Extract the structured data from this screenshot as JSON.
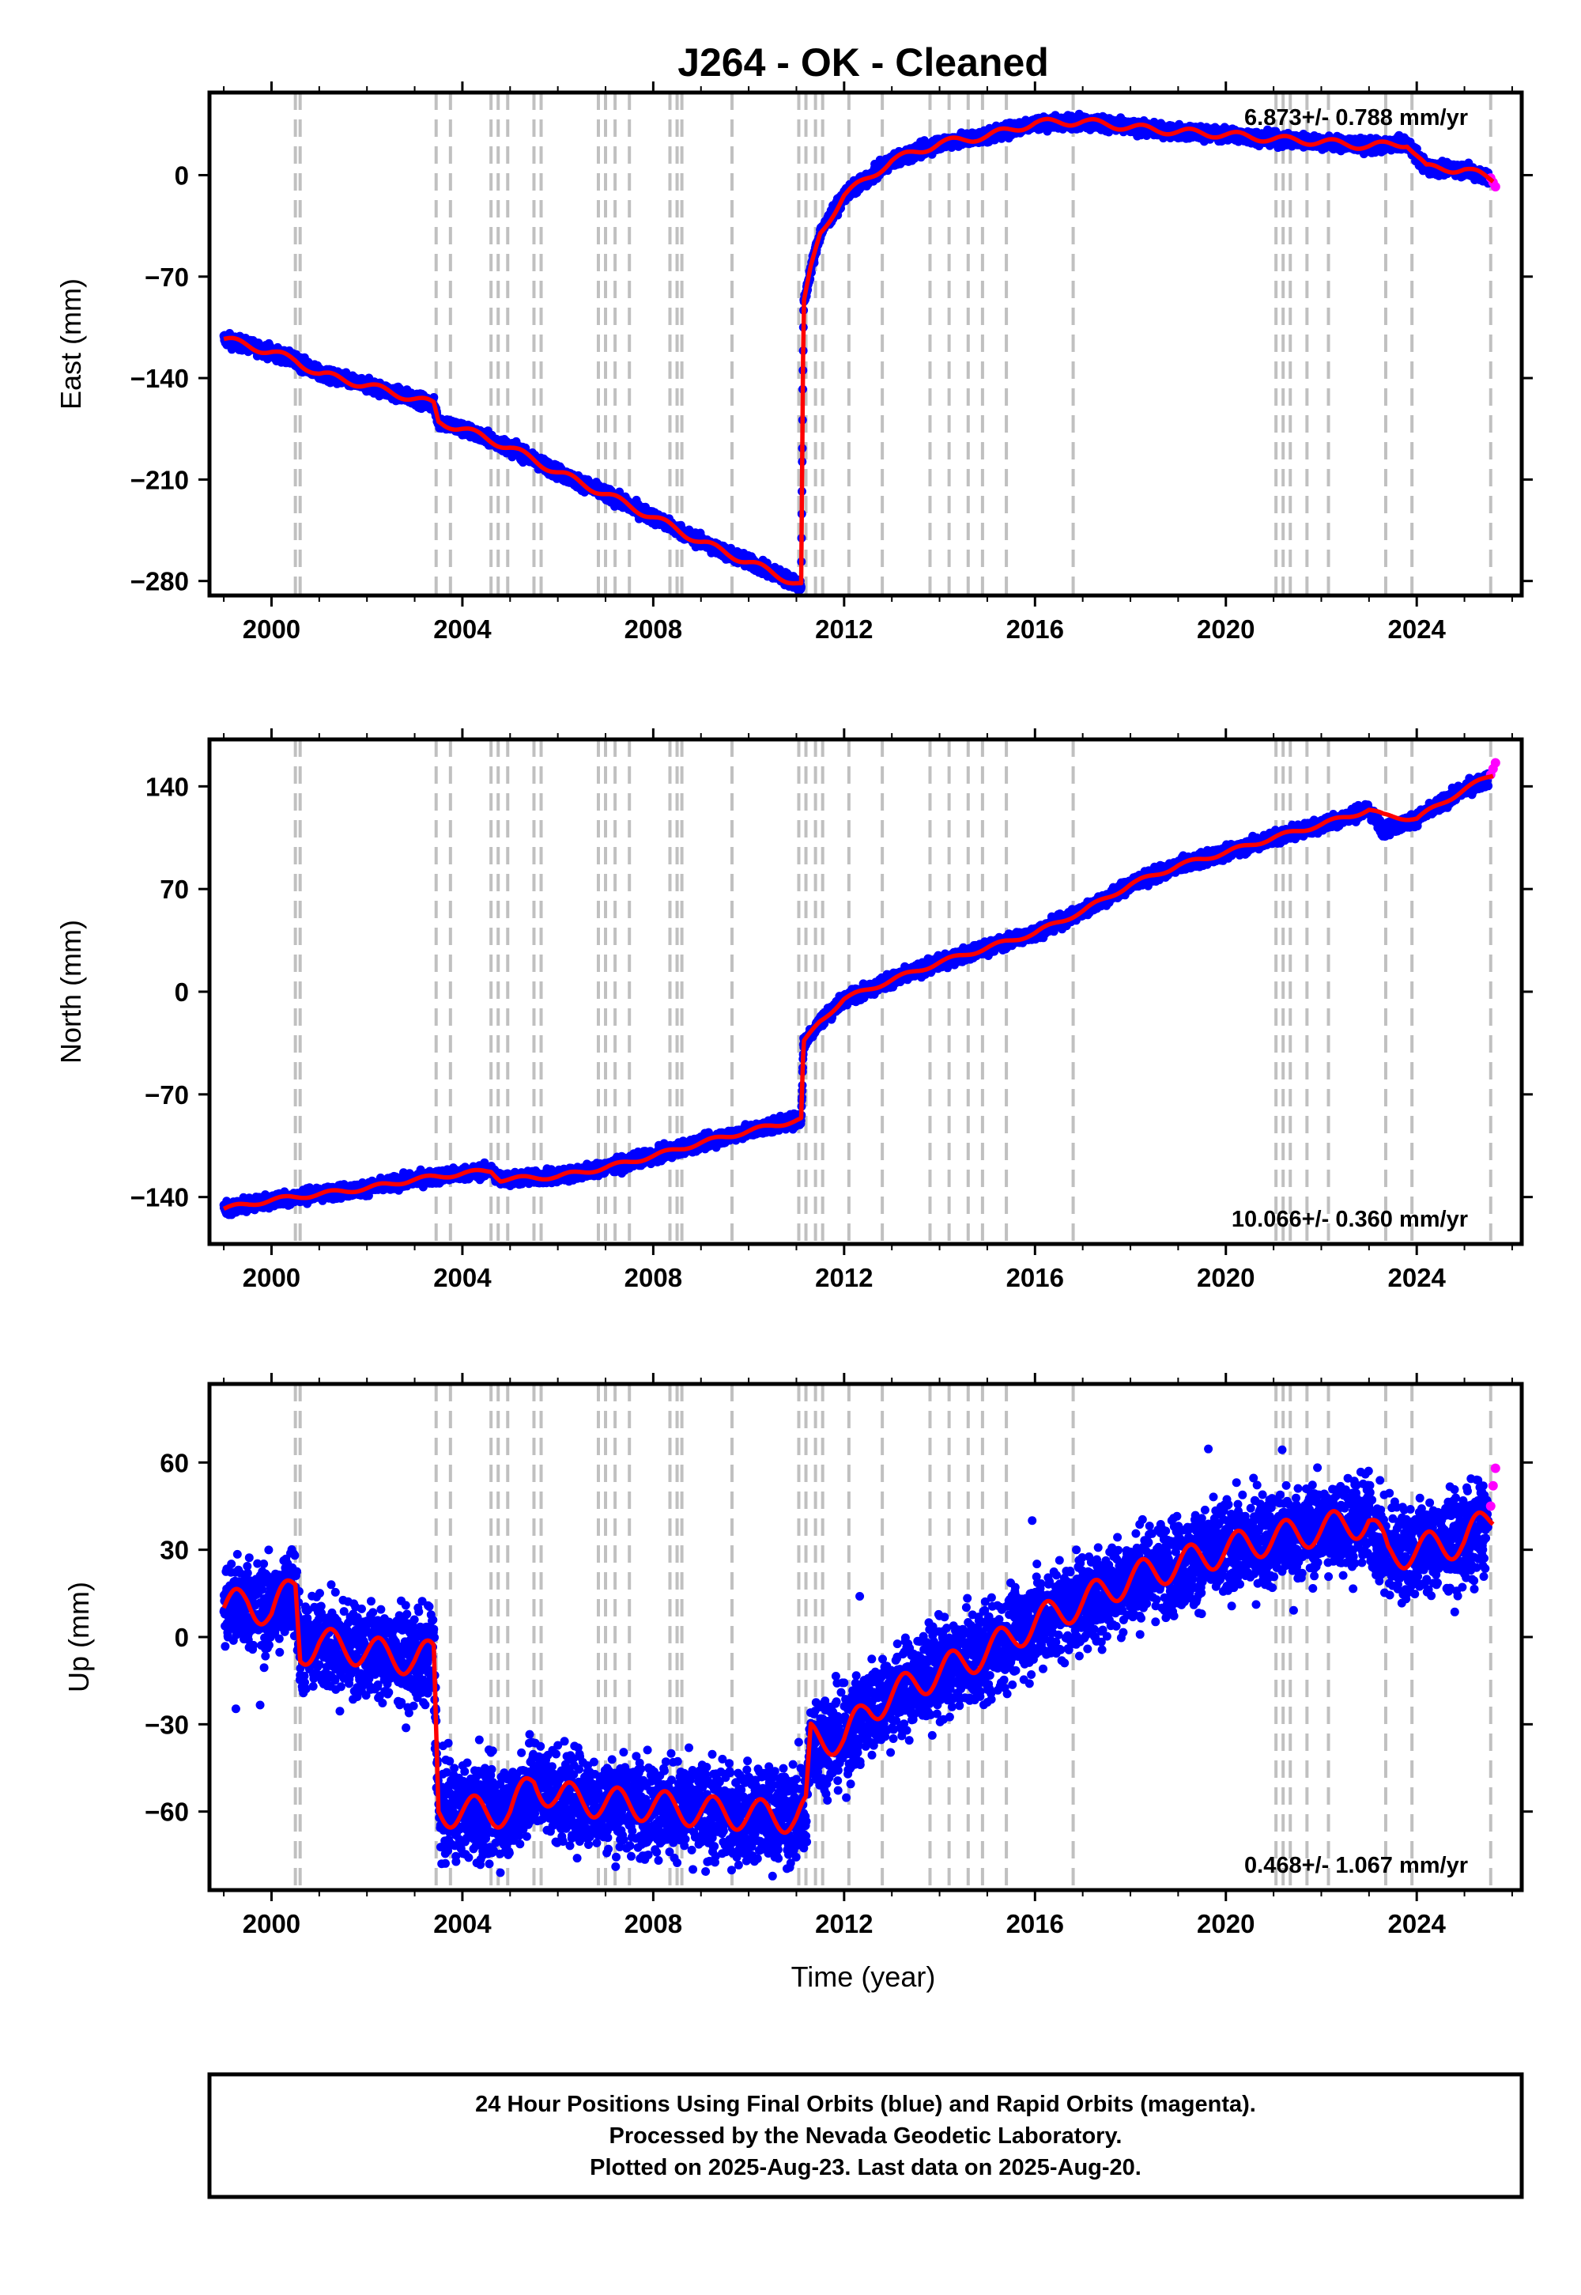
{
  "chart_data": {
    "title": "J264  - OK - Cleaned",
    "type": "scatter",
    "xlabel": "Time (year)",
    "xlim": [
      1998.7,
      2026.2
    ],
    "xticks": [
      "2000",
      "2004",
      "2008",
      "2012",
      "2016",
      "2020",
      "2024"
    ],
    "x_tick_values": [
      2000,
      2004,
      2008,
      2012,
      2016,
      2020,
      2024
    ],
    "event_lines": [
      2000.5,
      2000.6,
      2003.45,
      2003.75,
      2004.6,
      2004.75,
      2004.95,
      2005.5,
      2005.65,
      2006.85,
      2007.0,
      2007.2,
      2007.5,
      2008.35,
      2008.5,
      2008.6,
      2009.65,
      2011.05,
      2011.2,
      2011.4,
      2011.55,
      2012.1,
      2012.8,
      2013.8,
      2014.2,
      2014.6,
      2014.9,
      2015.4,
      2016.8,
      2021.05,
      2021.2,
      2021.35,
      2021.7,
      2022.15,
      2023.35,
      2023.9,
      2025.55
    ],
    "panels": [
      {
        "ylabel": "East (mm)",
        "ylim": [
          -290,
          57
        ],
        "yticks": [
          0,
          -70,
          -140,
          -210,
          -280
        ],
        "ytick_labels": [
          "0",
          "−70",
          "−140",
          "−210",
          "−280"
        ],
        "rate": "6.873+/- 0.788 mm/yr",
        "rate_position": "top-right",
        "series": [
          {
            "name": "Final Orbits",
            "color": "#0000ff",
            "x": [
              1999.0,
              2000.0,
              2000.5,
              2001.0,
              2002.0,
              2003.4,
              2003.5,
              2004.0,
              2005.0,
              2006.0,
              2007.0,
              2008.0,
              2009.0,
              2010.0,
              2011.1,
              2011.15,
              2011.3,
              2011.5,
              2012.0,
              2013.0,
              2014.0,
              2015.0,
              2016.0,
              2017.0,
              2018.0,
              2019.0,
              2020.0,
              2021.0,
              2022.0,
              2023.0,
              2023.8,
              2024.2,
              2025.0,
              2025.5
            ],
            "y": [
              -113,
              -122,
              -128,
              -137,
              -145,
              -158,
              -170,
              -175,
              -188,
              -205,
              -220,
              -236,
              -253,
              -267,
              -283,
              -90,
              -65,
              -40,
              -14,
              10,
              22,
              27,
              36,
              37,
              33,
              30,
              28,
              25,
              23,
              20,
              22,
              5,
              4,
              -2
            ]
          },
          {
            "name": "Rapid Orbits",
            "color": "#ff00ff",
            "x": [
              2025.55,
              2025.6,
              2025.65
            ],
            "y": [
              -2,
              -5,
              -8
            ]
          },
          {
            "name": "Model",
            "color": "#ff0000",
            "x": [
              1999.0,
              2000.0,
              2000.5,
              2001.0,
              2002.0,
              2003.4,
              2003.5,
              2004.0,
              2005.0,
              2006.0,
              2007.0,
              2008.0,
              2009.0,
              2010.0,
              2011.1,
              2011.15,
              2011.3,
              2011.5,
              2012.0,
              2013.0,
              2014.0,
              2015.0,
              2016.0,
              2017.0,
              2018.0,
              2019.0,
              2020.0,
              2021.0,
              2022.0,
              2023.0,
              2023.8,
              2024.2,
              2025.0,
              2025.6
            ],
            "y": [
              -113,
              -122,
              -128,
              -137,
              -145,
              -158,
              -170,
              -175,
              -188,
              -205,
              -220,
              -236,
              -253,
              -267,
              -283,
              -90,
              -65,
              -40,
              -14,
              10,
              22,
              27,
              36,
              37,
              33,
              30,
              28,
              25,
              23,
              20,
              22,
              5,
              4,
              -3
            ]
          }
        ]
      },
      {
        "ylabel": "North (mm)",
        "ylim": [
          -172,
          172
        ],
        "yticks": [
          140,
          70,
          0,
          -70,
          -140
        ],
        "ytick_labels": [
          "140",
          "70",
          "0",
          "−70",
          "−140"
        ],
        "rate": "10.066+/- 0.360 mm/yr",
        "rate_position": "bottom-right",
        "series": [
          {
            "name": "Final Orbits",
            "color": "#0000ff",
            "x": [
              1999.0,
              2000.0,
              2001.0,
              2002.0,
              2003.0,
              2004.0,
              2004.6,
              2004.8,
              2006.0,
              2007.0,
              2008.0,
              2009.0,
              2010.0,
              2011.1,
              2011.15,
              2011.5,
              2012.0,
              2013.0,
              2014.0,
              2015.0,
              2016.0,
              2017.0,
              2018.0,
              2019.0,
              2020.0,
              2021.0,
              2022.0,
              2023.0,
              2023.3,
              2024.0,
              2025.0,
              2025.5
            ],
            "y": [
              -148,
              -142,
              -138,
              -134,
              -128,
              -124,
              -122,
              -128,
              -126,
              -120,
              -112,
              -103,
              -95,
              -87,
              -35,
              -20,
              -5,
              8,
              20,
              30,
              40,
              55,
              73,
              86,
              95,
              105,
              114,
              124,
              110,
              118,
              138,
              145
            ]
          },
          {
            "name": "Rapid Orbits",
            "color": "#ff00ff",
            "x": [
              2025.55,
              2025.6,
              2025.65
            ],
            "y": [
              148,
              152,
              156
            ]
          },
          {
            "name": "Model",
            "color": "#ff0000",
            "x": [
              1999.0,
              2000.0,
              2001.0,
              2002.0,
              2003.0,
              2004.0,
              2004.6,
              2004.8,
              2006.0,
              2007.0,
              2008.0,
              2009.0,
              2010.0,
              2011.1,
              2011.15,
              2011.5,
              2012.0,
              2013.0,
              2014.0,
              2015.0,
              2016.0,
              2017.0,
              2018.0,
              2019.0,
              2020.0,
              2021.0,
              2022.0,
              2023.0,
              2023.3,
              2024.0,
              2025.0,
              2025.6
            ],
            "y": [
              -148,
              -142,
              -138,
              -134,
              -128,
              -124,
              -122,
              -128,
              -126,
              -120,
              -112,
              -103,
              -95,
              -87,
              -35,
              -20,
              -5,
              8,
              20,
              30,
              40,
              55,
              73,
              86,
              95,
              105,
              114,
              124,
              120,
              118,
              138,
              148
            ]
          }
        ]
      },
      {
        "ylabel": "Up (mm)",
        "ylim": [
          -87,
          87
        ],
        "yticks": [
          60,
          30,
          0,
          -30,
          -60
        ],
        "ytick_labels": [
          "60",
          "30",
          "0",
          "−30",
          "−60"
        ],
        "rate": "0.468+/- 1.067 mm/yr",
        "rate_position": "bottom-right",
        "series": [
          {
            "name": "Final Orbits",
            "color": "#0000ff",
            "x": [
              1999.0,
              1999.5,
              2000.0,
              2000.5,
              2000.6,
              2001.0,
              2002.0,
              2003.0,
              2003.4,
              2003.5,
              2004.0,
              2005.0,
              2005.5,
              2006.0,
              2007.0,
              2008.0,
              2009.0,
              2010.0,
              2011.0,
              2011.2,
              2011.3,
              2012.0,
              2012.5,
              2013.0,
              2014.0,
              2015.0,
              2016.0,
              2017.0,
              2018.0,
              2019.0,
              2020.0,
              2021.0,
              2022.0,
              2023.0,
              2023.4,
              2024.0,
              2025.0,
              2025.5
            ],
            "y": [
              10,
              12,
              8,
              18,
              -5,
              -2,
              -5,
              -8,
              -6,
              -60,
              -60,
              -60,
              -50,
              -55,
              -57,
              -58,
              -60,
              -61,
              -62,
              -60,
              -35,
              -35,
              -25,
              -20,
              -12,
              -5,
              5,
              12,
              20,
              25,
              30,
              34,
              37,
              40,
              28,
              30,
              33,
              40
            ]
          },
          {
            "name": "Rapid Orbits",
            "color": "#ff00ff",
            "x": [
              2025.55,
              2025.6,
              2025.65
            ],
            "y": [
              45,
              52,
              58
            ]
          },
          {
            "name": "Model",
            "color": "#ff0000",
            "x": [
              1999.0,
              1999.5,
              2000.0,
              2000.5,
              2000.6,
              2001.0,
              2002.0,
              2003.0,
              2003.4,
              2003.5,
              2004.0,
              2005.0,
              2005.5,
              2006.0,
              2007.0,
              2008.0,
              2009.0,
              2010.0,
              2011.0,
              2011.2,
              2011.3,
              2012.0,
              2012.5,
              2013.0,
              2014.0,
              2015.0,
              2016.0,
              2017.0,
              2018.0,
              2019.0,
              2020.0,
              2021.0,
              2022.0,
              2023.0,
              2023.4,
              2024.0,
              2025.0,
              2025.6
            ],
            "y": [
              10,
              12,
              8,
              18,
              -5,
              -2,
              -5,
              -8,
              -6,
              -60,
              -60,
              -60,
              -50,
              -55,
              -57,
              -58,
              -60,
              -61,
              -62,
              -60,
              -35,
              -35,
              -25,
              -20,
              -12,
              -5,
              5,
              12,
              20,
              25,
              30,
              34,
              37,
              40,
              28,
              30,
              33,
              42
            ]
          }
        ]
      }
    ]
  },
  "footer": {
    "line1": "24 Hour Positions Using Final Orbits (blue) and Rapid Orbits (magenta).",
    "line2": "Processed by the Nevada Geodetic Laboratory.",
    "line3": "Plotted on 2025-Aug-23. Last data on 2025-Aug-20."
  }
}
